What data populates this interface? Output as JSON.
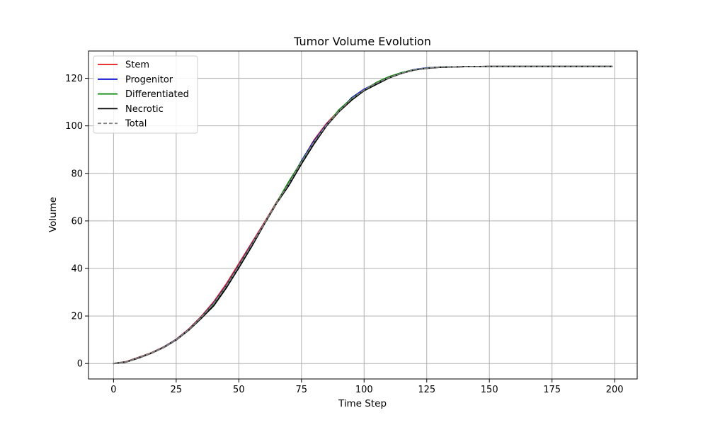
{
  "chart_data": {
    "type": "line",
    "title": "Tumor Volume Evolution",
    "xlabel": "Time Step",
    "ylabel": "Volume",
    "xlim": [
      -10,
      209
    ],
    "ylim": [
      -6.5,
      131.5
    ],
    "xticks": [
      0,
      25,
      50,
      75,
      100,
      125,
      150,
      175,
      200
    ],
    "yticks": [
      0,
      20,
      40,
      60,
      80,
      100,
      120
    ],
    "grid": true,
    "legend_position": "top-left",
    "x": [
      0,
      5,
      10,
      15,
      20,
      25,
      30,
      35,
      40,
      45,
      50,
      55,
      60,
      65,
      70,
      75,
      80,
      85,
      90,
      95,
      100,
      105,
      110,
      115,
      120,
      125,
      130,
      140,
      150,
      160,
      170,
      180,
      190,
      199
    ],
    "series": [
      {
        "name": "Stem",
        "color": "#e41a1c",
        "dash": "solid",
        "values": [
          0,
          0.8,
          2.6,
          4.5,
          7.0,
          10.2,
          14.5,
          19.8,
          26.0,
          33.5,
          42.0,
          50.5,
          59.0,
          67.8,
          76.0,
          85.0,
          94.0,
          101.0,
          106.5,
          111.5,
          115.2,
          118.2,
          120.5,
          122.2,
          123.6,
          124.3,
          124.7,
          124.9,
          125.0,
          125.0,
          125.0,
          125.0,
          125.0,
          125.0
        ]
      },
      {
        "name": "Progenitor",
        "color": "#0000cc",
        "dash": "solid",
        "values": [
          0,
          0.7,
          2.5,
          4.4,
          6.9,
          10.1,
          14.3,
          19.5,
          25.5,
          32.8,
          41.3,
          50.0,
          58.6,
          67.5,
          75.8,
          85.3,
          93.6,
          100.6,
          106.2,
          111.8,
          115.4,
          118.0,
          120.4,
          122.3,
          123.7,
          124.4,
          124.7,
          124.9,
          125.0,
          125.0,
          125.0,
          125.0,
          125.0,
          125.0
        ]
      },
      {
        "name": "Differentiated",
        "color": "#008000",
        "dash": "solid",
        "values": [
          0,
          0.7,
          2.4,
          4.4,
          6.8,
          10.0,
          14.2,
          19.4,
          25.2,
          32.5,
          41.0,
          49.6,
          58.5,
          67.6,
          76.6,
          85.0,
          93.0,
          100.2,
          106.8,
          111.5,
          115.0,
          118.3,
          120.7,
          122.4,
          123.6,
          124.3,
          124.7,
          124.9,
          125.0,
          125.0,
          125.0,
          125.0,
          125.0,
          125.0
        ]
      },
      {
        "name": "Necrotic",
        "color": "#000000",
        "dash": "solid",
        "values": [
          0,
          0.6,
          2.3,
          4.3,
          6.7,
          9.9,
          14.0,
          19.0,
          24.3,
          31.8,
          40.3,
          49.0,
          58.3,
          67.3,
          75.0,
          84.0,
          92.4,
          100.0,
          106.0,
          110.8,
          114.8,
          117.5,
          120.2,
          122.1,
          123.5,
          124.2,
          124.6,
          124.9,
          125.0,
          125.0,
          125.0,
          125.0,
          125.0,
          125.0
        ]
      },
      {
        "name": "Total",
        "color": "#808080",
        "dash": "dashed",
        "values": [
          0,
          0.7,
          2.4,
          4.4,
          6.8,
          10.0,
          14.2,
          19.4,
          25.3,
          32.6,
          41.1,
          49.8,
          58.6,
          67.5,
          75.8,
          84.8,
          93.2,
          100.4,
          106.3,
          111.4,
          115.1,
          118.0,
          120.4,
          122.2,
          123.6,
          124.3,
          124.7,
          124.9,
          125.0,
          125.0,
          125.0,
          125.0,
          125.0,
          125.0
        ]
      }
    ]
  }
}
